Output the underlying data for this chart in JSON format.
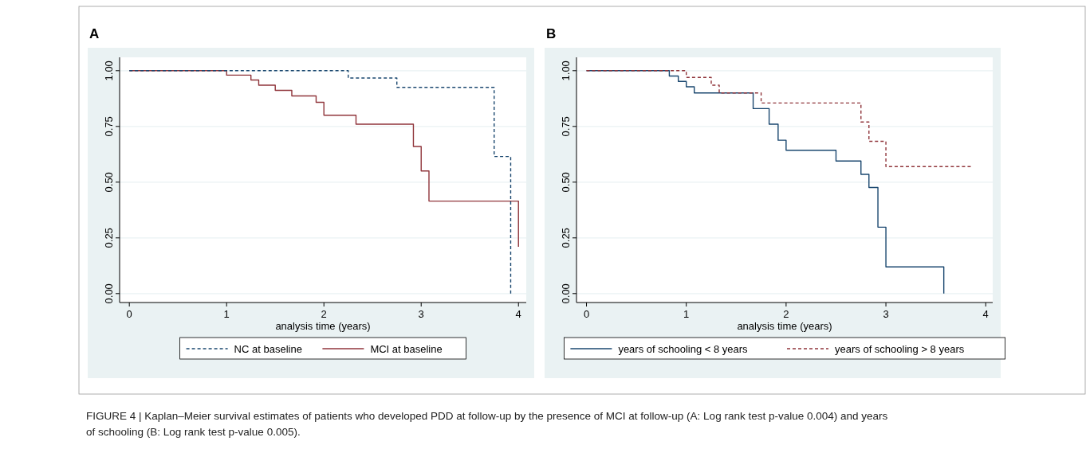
{
  "chart_data": [
    {
      "type": "step",
      "title": "A",
      "xlabel": "analysis time (years)",
      "xlim": [
        -0.1,
        4.08
      ],
      "ylim": [
        -0.04,
        1.06
      ],
      "xticks": [
        0,
        1,
        2,
        3,
        4
      ],
      "yticks": [
        {
          "value": 0,
          "label": "0.00"
        },
        {
          "value": 0.25,
          "label": "0.25"
        },
        {
          "value": 0.5,
          "label": "0.50"
        },
        {
          "value": 0.75,
          "label": "0.75"
        },
        {
          "value": 1,
          "label": "1.00"
        }
      ],
      "grid": "y",
      "legend": "bottom",
      "annotations": [
        "FIGURE 4 | Kaplan–Meier survival estimates of patients who developed PDD at follow-up by the presence of MCI at follow-up (A: Log rank test p-value 0.004) and years of schooling (B: Log rank test p-value 0.005)."
      ],
      "series": [
        {
          "name": "NC at baseline",
          "color": "#1a476f",
          "line_style": "dashed",
          "x": [
            0,
            2.25,
            2.75,
            3.75,
            3.92
          ],
          "values": [
            1,
            0.967,
            0.925,
            0.615,
            0
          ]
        },
        {
          "name": "MCI at baseline",
          "color": "#90353b",
          "line_style": "solid",
          "x": [
            0,
            1,
            1.25,
            1.33,
            1.5,
            1.67,
            1.92,
            2,
            2.33,
            2.92,
            3,
            3.08,
            4
          ],
          "values": [
            1,
            0.98,
            0.958,
            0.935,
            0.912,
            0.887,
            0.858,
            0.8,
            0.76,
            0.66,
            0.55,
            0.415,
            0.21
          ]
        }
      ]
    },
    {
      "type": "step",
      "title": "B",
      "xlabel": "analysis time (years)",
      "xlim": [
        -0.1,
        4.07
      ],
      "ylim": [
        -0.04,
        1.06
      ],
      "xticks": [
        0,
        1,
        2,
        3,
        4
      ],
      "yticks": [
        {
          "value": 0,
          "label": "0.00"
        },
        {
          "value": 0.25,
          "label": "0.25"
        },
        {
          "value": 0.5,
          "label": "0.50"
        },
        {
          "value": 0.75,
          "label": "0.75"
        },
        {
          "value": 1,
          "label": "1.00"
        }
      ],
      "grid": "y",
      "legend": "bottom",
      "series": [
        {
          "name": "years of schooling < 8 years",
          "color": "#1a476f",
          "line_style": "solid",
          "x": [
            0,
            0.83,
            0.92,
            1,
            1.08,
            1.67,
            1.83,
            1.92,
            2,
            2.5,
            2.75,
            2.83,
            2.92,
            3,
            3.58
          ],
          "values": [
            1,
            0.976,
            0.952,
            0.928,
            0.9,
            0.83,
            0.76,
            0.688,
            0.643,
            0.595,
            0.535,
            0.476,
            0.298,
            0.12,
            0
          ]
        },
        {
          "name": "years of schooling > 8 years",
          "color": "#90353b",
          "line_style": "dashed",
          "x": [
            0,
            1,
            1.25,
            1.33,
            1.75,
            2.75,
            2.83,
            3,
            3.85
          ],
          "values": [
            1,
            0.97,
            0.935,
            0.9,
            0.855,
            0.77,
            0.683,
            0.57,
            0.57
          ]
        }
      ]
    }
  ]
}
